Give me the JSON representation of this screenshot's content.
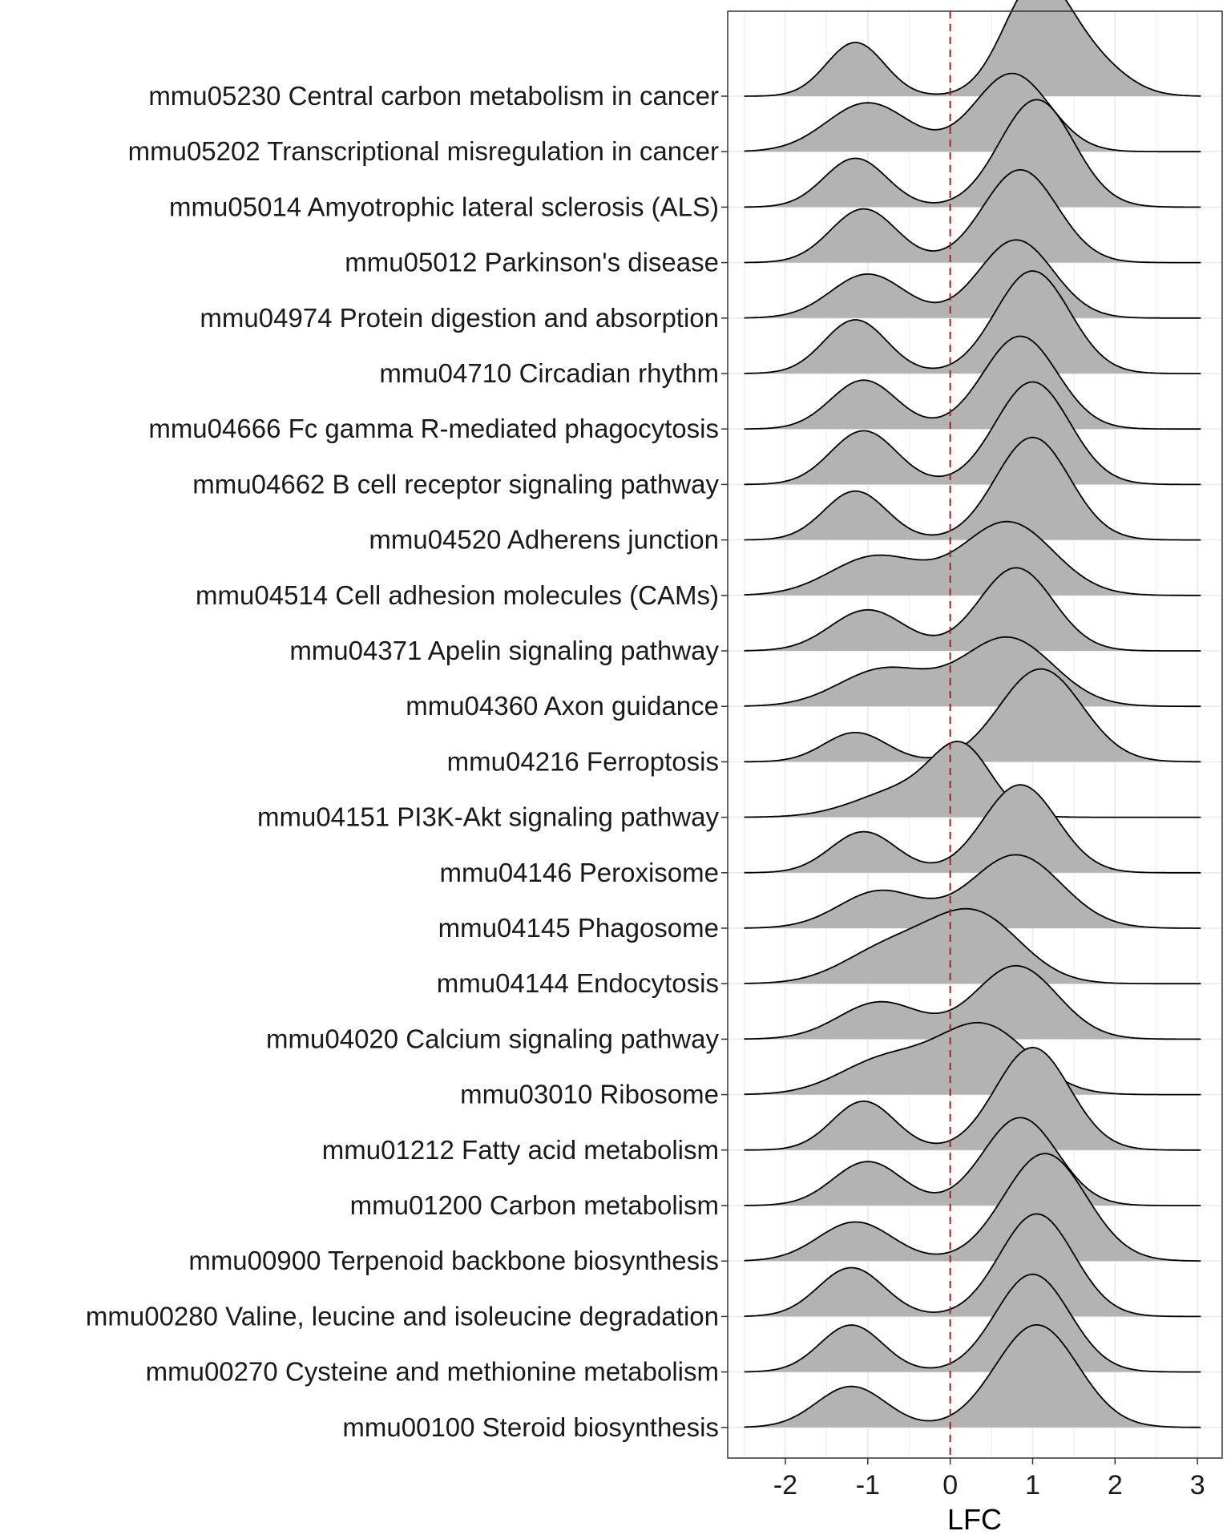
{
  "chart_data": {
    "type": "ridgeline",
    "title": "",
    "xlabel": "LFC",
    "ylabel": "",
    "xlim": [
      -2.7,
      3.3
    ],
    "x_ticks": [
      -2,
      -1,
      0,
      1,
      2,
      3
    ],
    "x_tick_labels": [
      "-2",
      "-1",
      "0",
      "1",
      "2",
      "3"
    ],
    "reference_line": {
      "x": 0,
      "style": "dashed",
      "color": "#b2182b"
    },
    "fill_color": "#b3b3b3",
    "outline_color": "#000000",
    "grid": true,
    "ridge_scale_factor": 2.15,
    "x_range": [
      -2.5,
      3.05
    ],
    "categories": [
      "mmu05230 Central carbon metabolism in cancer",
      "mmu05202 Transcriptional misregulation in cancer",
      "mmu05014 Amyotrophic lateral sclerosis (ALS)",
      "mmu05012 Parkinson's disease",
      "mmu04974 Protein digestion and absorption",
      "mmu04710 Circadian rhythm",
      "mmu04666 Fc gamma R-mediated phagocytosis",
      "mmu04662 B cell receptor signaling pathway",
      "mmu04520 Adherens junction",
      "mmu04514 Cell adhesion molecules (CAMs)",
      "mmu04371 Apelin signaling pathway",
      "mmu04360 Axon guidance",
      "mmu04216 Ferroptosis",
      "mmu04151 PI3K-Akt signaling pathway",
      "mmu04146 Peroxisome",
      "mmu04145 Phagosome",
      "mmu04144 Endocytosis",
      "mmu04020 Calcium signaling pathway",
      "mmu03010 Ribosome",
      "mmu01212 Fatty acid metabolism",
      "mmu01200 Carbon metabolism",
      "mmu00900 Terpenoid backbone biosynthesis",
      "mmu00280 Valine, leucine and isoleucine degradation",
      "mmu00270 Cysteine and methionine metabolism",
      "mmu00100 Steroid biosynthesis"
    ],
    "series": [
      {
        "components": [
          {
            "mean": -1.15,
            "sd": 0.35,
            "weight": 0.55
          },
          {
            "mean": 1.05,
            "sd": 0.4,
            "weight": 1.15
          },
          {
            "mean": 1.75,
            "sd": 0.4,
            "weight": 0.3
          }
        ]
      },
      {
        "components": [
          {
            "mean": -1.0,
            "sd": 0.5,
            "weight": 0.5
          },
          {
            "mean": 0.75,
            "sd": 0.45,
            "weight": 0.8
          }
        ]
      },
      {
        "components": [
          {
            "mean": -1.15,
            "sd": 0.38,
            "weight": 0.5
          },
          {
            "mean": 1.05,
            "sd": 0.45,
            "weight": 1.1
          }
        ]
      },
      {
        "components": [
          {
            "mean": -1.05,
            "sd": 0.4,
            "weight": 0.55
          },
          {
            "mean": 0.85,
            "sd": 0.45,
            "weight": 0.95
          }
        ]
      },
      {
        "components": [
          {
            "mean": -1.0,
            "sd": 0.45,
            "weight": 0.45
          },
          {
            "mean": 0.8,
            "sd": 0.45,
            "weight": 0.8
          }
        ]
      },
      {
        "components": [
          {
            "mean": -1.15,
            "sd": 0.38,
            "weight": 0.55
          },
          {
            "mean": 1.0,
            "sd": 0.45,
            "weight": 1.05
          }
        ]
      },
      {
        "components": [
          {
            "mean": -1.05,
            "sd": 0.4,
            "weight": 0.5
          },
          {
            "mean": 0.85,
            "sd": 0.45,
            "weight": 0.95
          }
        ]
      },
      {
        "components": [
          {
            "mean": -1.05,
            "sd": 0.4,
            "weight": 0.55
          },
          {
            "mean": 1.0,
            "sd": 0.45,
            "weight": 1.05
          }
        ]
      },
      {
        "components": [
          {
            "mean": -1.15,
            "sd": 0.38,
            "weight": 0.5
          },
          {
            "mean": 1.0,
            "sd": 0.45,
            "weight": 1.05
          }
        ]
      },
      {
        "components": [
          {
            "mean": -0.9,
            "sd": 0.55,
            "weight": 0.4
          },
          {
            "mean": 0.7,
            "sd": 0.55,
            "weight": 0.75
          }
        ]
      },
      {
        "components": [
          {
            "mean": -1.0,
            "sd": 0.45,
            "weight": 0.42
          },
          {
            "mean": 0.8,
            "sd": 0.45,
            "weight": 0.85
          }
        ]
      },
      {
        "components": [
          {
            "mean": -0.8,
            "sd": 0.55,
            "weight": 0.38
          },
          {
            "mean": 0.7,
            "sd": 0.55,
            "weight": 0.7
          }
        ]
      },
      {
        "components": [
          {
            "mean": -1.15,
            "sd": 0.38,
            "weight": 0.3
          },
          {
            "mean": 1.1,
            "sd": 0.5,
            "weight": 0.95
          }
        ]
      },
      {
        "components": [
          {
            "mean": -0.5,
            "sd": 0.6,
            "weight": 0.3
          },
          {
            "mean": 0.15,
            "sd": 0.35,
            "weight": 0.6
          }
        ]
      },
      {
        "components": [
          {
            "mean": -1.05,
            "sd": 0.4,
            "weight": 0.42
          },
          {
            "mean": 0.85,
            "sd": 0.45,
            "weight": 0.9
          }
        ]
      },
      {
        "components": [
          {
            "mean": -0.85,
            "sd": 0.5,
            "weight": 0.38
          },
          {
            "mean": 0.8,
            "sd": 0.55,
            "weight": 0.75
          }
        ]
      },
      {
        "components": [
          {
            "mean": -0.75,
            "sd": 0.55,
            "weight": 0.35
          },
          {
            "mean": 0.3,
            "sd": 0.55,
            "weight": 0.7
          }
        ]
      },
      {
        "components": [
          {
            "mean": -0.85,
            "sd": 0.5,
            "weight": 0.38
          },
          {
            "mean": 0.8,
            "sd": 0.5,
            "weight": 0.75
          }
        ]
      },
      {
        "components": [
          {
            "mean": -0.8,
            "sd": 0.55,
            "weight": 0.35
          },
          {
            "mean": 0.4,
            "sd": 0.55,
            "weight": 0.7
          }
        ]
      },
      {
        "components": [
          {
            "mean": -1.05,
            "sd": 0.38,
            "weight": 0.5
          },
          {
            "mean": 1.0,
            "sd": 0.45,
            "weight": 1.05
          }
        ]
      },
      {
        "components": [
          {
            "mean": -1.0,
            "sd": 0.42,
            "weight": 0.45
          },
          {
            "mean": 0.85,
            "sd": 0.45,
            "weight": 0.9
          }
        ]
      },
      {
        "components": [
          {
            "mean": -1.15,
            "sd": 0.45,
            "weight": 0.4
          },
          {
            "mean": 1.15,
            "sd": 0.5,
            "weight": 1.1
          }
        ]
      },
      {
        "components": [
          {
            "mean": -1.2,
            "sd": 0.4,
            "weight": 0.5
          },
          {
            "mean": 1.05,
            "sd": 0.45,
            "weight": 1.05
          }
        ]
      },
      {
        "components": [
          {
            "mean": -1.2,
            "sd": 0.38,
            "weight": 0.48
          },
          {
            "mean": 1.0,
            "sd": 0.45,
            "weight": 1.0
          }
        ]
      },
      {
        "components": [
          {
            "mean": -1.2,
            "sd": 0.42,
            "weight": 0.42
          },
          {
            "mean": 1.05,
            "sd": 0.5,
            "weight": 1.05
          }
        ]
      }
    ]
  }
}
